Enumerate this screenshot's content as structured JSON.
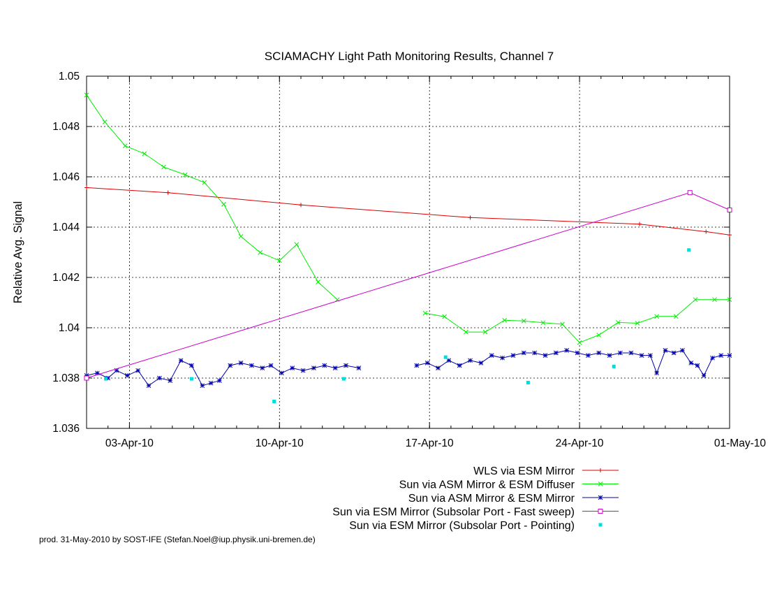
{
  "chart_data": {
    "type": "line",
    "title": "SCIAMACHY Light Path Monitoring Results, Channel 7",
    "ylabel": "Relative Avg. Signal",
    "xlabel": "",
    "x_axis": {
      "unit": "days since 2010-04-01",
      "range": [
        1.0,
        31.0
      ],
      "ticks": [
        {
          "value": 3,
          "label": "03-Apr-10"
        },
        {
          "value": 10,
          "label": "10-Apr-10"
        },
        {
          "value": 17,
          "label": "17-Apr-10"
        },
        {
          "value": 24,
          "label": "24-Apr-10"
        },
        {
          "value": 31,
          "label": "01-May-10"
        }
      ]
    },
    "y_axis": {
      "range": [
        1.036,
        1.05
      ],
      "ticks": [
        {
          "value": 1.036,
          "label": "1.036"
        },
        {
          "value": 1.038,
          "label": "1.038"
        },
        {
          "value": 1.04,
          "label": "1.04"
        },
        {
          "value": 1.042,
          "label": "1.042"
        },
        {
          "value": 1.044,
          "label": "1.044"
        },
        {
          "value": 1.046,
          "label": "1.046"
        },
        {
          "value": 1.048,
          "label": "1.048"
        },
        {
          "value": 1.05,
          "label": "1.05"
        }
      ]
    },
    "grid": true,
    "legend_position": "bottom-right",
    "series": [
      {
        "name": "WLS via ESM Mirror",
        "style": "line-points",
        "marker": "plus",
        "color": "#dd0000",
        "x": [
          1.0,
          4.8,
          11.0,
          18.9,
          26.8,
          29.9,
          31.0
        ],
        "y": [
          1.04557,
          1.04537,
          1.04488,
          1.04438,
          1.04412,
          1.04382,
          1.04369
        ]
      },
      {
        "name": "Sun via ASM Mirror & ESM Diffuser",
        "style": "line-points",
        "marker": "cross",
        "color": "#00ee00",
        "segments": [
          {
            "x": [
              1.0,
              1.85,
              2.8,
              3.7,
              4.6,
              5.6,
              6.5,
              7.4,
              8.2,
              9.1,
              10.0,
              10.8,
              11.8,
              12.7
            ],
            "y": [
              1.04925,
              1.04818,
              1.04723,
              1.04692,
              1.04639,
              1.04608,
              1.04577,
              1.04491,
              1.04363,
              1.04299,
              1.04267,
              1.04331,
              1.04182,
              1.04112
            ]
          },
          {
            "x": [
              16.8,
              17.7,
              18.7,
              19.6,
              20.5,
              21.4,
              22.3,
              23.2,
              24.0,
              24.9,
              25.8,
              26.7,
              27.6,
              28.5,
              29.4,
              30.3,
              31.0
            ],
            "y": [
              1.04058,
              1.04044,
              1.03983,
              1.03983,
              1.0403,
              1.04027,
              1.0402,
              1.04014,
              1.03941,
              1.03971,
              1.04021,
              1.04018,
              1.04045,
              1.04045,
              1.04112,
              1.04112,
              1.04112
            ]
          }
        ]
      },
      {
        "name": "Sun via ASM Mirror & ESM Mirror",
        "style": "line-points",
        "marker": "star",
        "color": "#0000aa",
        "segments": [
          {
            "x": [
              1.0,
              1.5,
              2.0,
              2.4,
              2.9,
              3.4,
              3.9,
              4.4,
              4.9,
              5.4,
              5.9,
              6.4,
              6.8,
              7.2,
              7.7,
              8.2,
              8.7,
              9.2,
              9.6,
              10.1,
              10.6,
              11.1,
              11.6,
              12.1,
              12.6,
              13.1,
              13.7
            ],
            "y": [
              1.0381,
              1.0382,
              1.038,
              1.0383,
              1.0381,
              1.0383,
              1.0377,
              1.038,
              1.0379,
              1.0387,
              1.0385,
              1.0377,
              1.0378,
              1.0379,
              1.0385,
              1.0386,
              1.0385,
              1.0384,
              1.0385,
              1.0382,
              1.0384,
              1.0383,
              1.0384,
              1.0385,
              1.0384,
              1.0385,
              1.0384
            ]
          },
          {
            "x": [
              16.4,
              16.9,
              17.4,
              17.9,
              18.4,
              18.9,
              19.4,
              19.9,
              20.4,
              20.9,
              21.4,
              21.9,
              22.4,
              22.9,
              23.4,
              23.9,
              24.4,
              24.9,
              25.4,
              25.9,
              26.4,
              26.9,
              27.3,
              27.6,
              28.0,
              28.4,
              28.8,
              29.2,
              29.5,
              29.8,
              30.2,
              30.6,
              31.0
            ],
            "y": [
              1.0385,
              1.0386,
              1.0384,
              1.0387,
              1.0385,
              1.0387,
              1.0386,
              1.0389,
              1.0388,
              1.0389,
              1.039,
              1.039,
              1.0389,
              1.039,
              1.0391,
              1.039,
              1.0389,
              1.039,
              1.0389,
              1.039,
              1.039,
              1.0389,
              1.0389,
              1.0382,
              1.0391,
              1.039,
              1.0391,
              1.0386,
              1.0385,
              1.0381,
              1.0388,
              1.0389,
              1.0389
            ]
          }
        ]
      },
      {
        "name": "Sun via ESM Mirror (Subsolar Port - Fast sweep)",
        "style": "line-points",
        "marker": "open-square",
        "color": "#cc00cc",
        "x": [
          1.0,
          29.15,
          31.0
        ],
        "y": [
          1.038,
          1.04537,
          1.04468
        ]
      },
      {
        "name": "Sun via ESM Mirror (Subsolar Port - Pointing)",
        "style": "points",
        "marker": "filled-square",
        "color": "#00dddd",
        "x": [
          1.9,
          5.9,
          9.75,
          13.0,
          17.75,
          21.6,
          25.6,
          29.1
        ],
        "y": [
          1.03797,
          1.03797,
          1.03707,
          1.03797,
          1.03883,
          1.03782,
          1.03846,
          1.04309
        ]
      }
    ],
    "footer": "prod. 31-May-2010 by SOST-IFE (Stefan.Noel@iup.physik.uni-bremen.de)"
  }
}
